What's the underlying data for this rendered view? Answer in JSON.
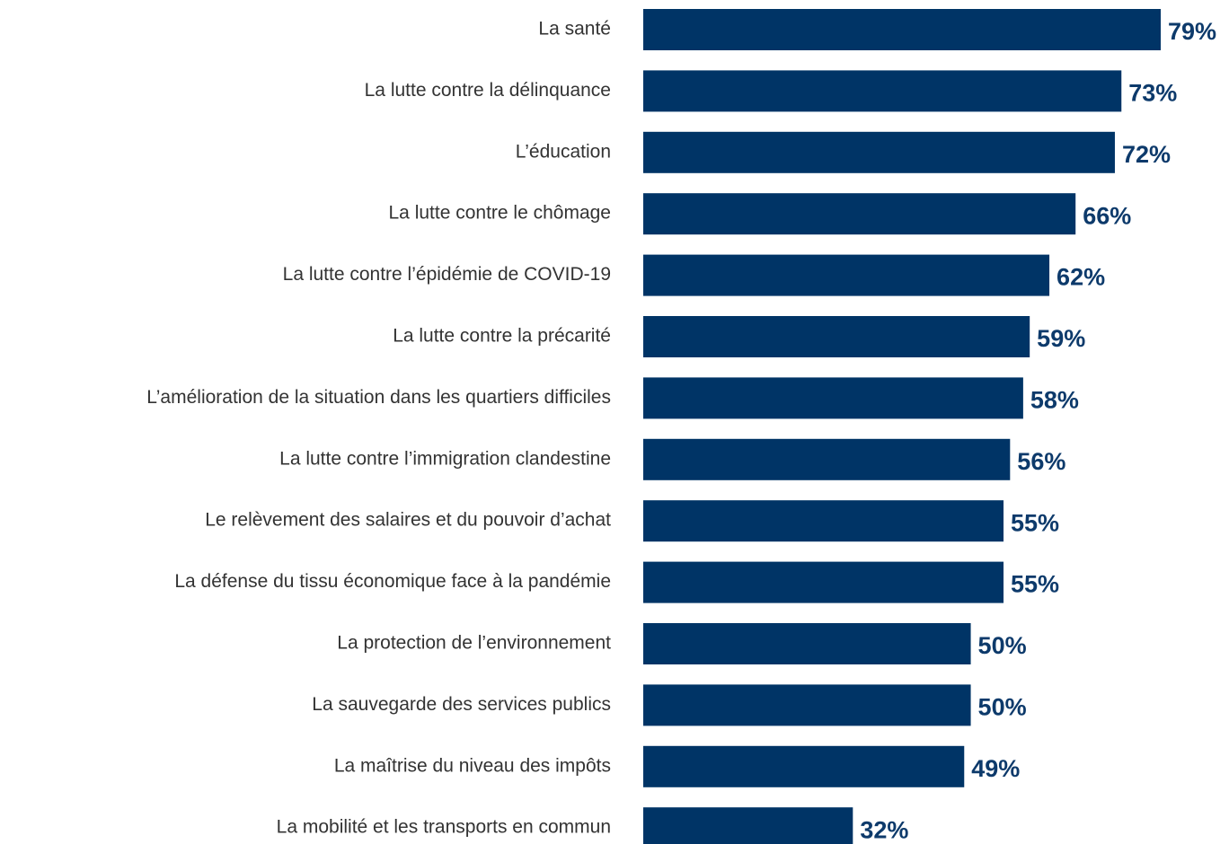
{
  "chart_data": {
    "type": "barh",
    "categories": [
      "La santé",
      "La lutte contre la délinquance",
      "L’éducation",
      "La lutte contre le chômage",
      "La lutte contre l’épidémie de COVID-19",
      "La lutte contre la précarité",
      "L’amélioration de la situation dans les quartiers difficiles",
      "La lutte contre l’immigration clandestine",
      "Le relèvement des salaires et du pouvoir d’achat",
      "La défense du tissu économique face à la pandémie",
      "La protection de l’environnement",
      "La sauvegarde des services publics",
      "La maîtrise du niveau des impôts",
      "La mobilité et les transports en commun"
    ],
    "values": [
      79,
      73,
      72,
      66,
      62,
      59,
      58,
      56,
      55,
      55,
      50,
      50,
      49,
      32
    ],
    "value_labels": [
      "79%",
      "73%",
      "72%",
      "66%",
      "62%",
      "59%",
      "58%",
      "56%",
      "55%",
      "55%",
      "50%",
      "50%",
      "49%",
      "32%"
    ],
    "color": "#003466"
  }
}
